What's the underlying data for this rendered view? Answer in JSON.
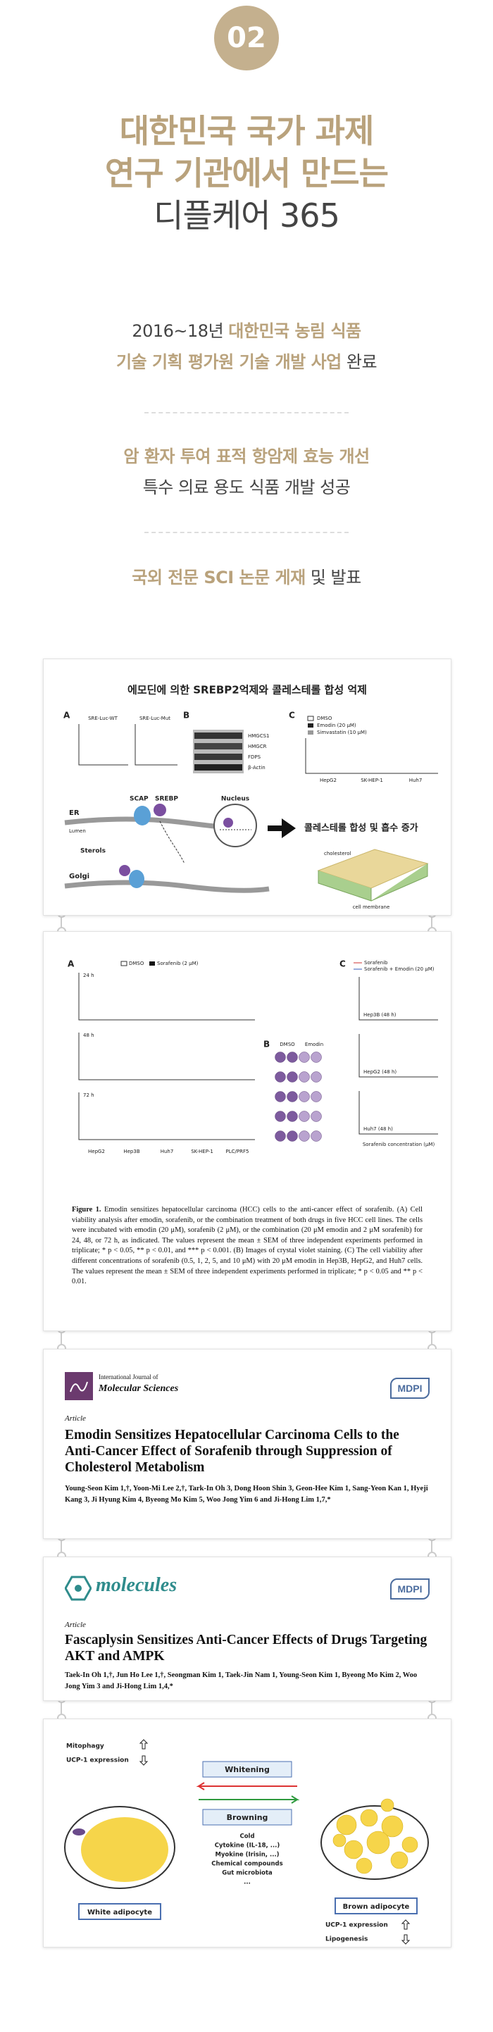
{
  "badge": "02",
  "headline": [
    {
      "text": "대한민국 국가 과제",
      "style": "accent"
    },
    {
      "text": "연구 기관에서 만드는",
      "style": "accent"
    },
    {
      "text": "디플케어 365",
      "style": "plain"
    }
  ],
  "achievements": [
    {
      "lines": [
        [
          {
            "text": "2016~18년 ",
            "style": "plain"
          },
          {
            "text": "대한민국 농림 식품",
            "style": "accent"
          }
        ],
        [
          {
            "text": "기술 기획 평가원 기술 개발 사업",
            "style": "accent"
          },
          {
            "text": " 완료",
            "style": "plain"
          }
        ]
      ]
    },
    {
      "lines": [
        [
          {
            "text": "암 환자 투여 표적 항암제 효능 개선",
            "style": "accent"
          }
        ],
        [
          {
            "text": "특수 의료 용도 식품 개발 성공",
            "style": "plain"
          }
        ]
      ]
    },
    {
      "lines": [
        [
          {
            "text": "국외 전문 SCI 논문 게재",
            "style": "accent"
          },
          {
            "text": " 및 발표",
            "style": "plain"
          }
        ]
      ]
    }
  ],
  "figure1": {
    "title": "에모딘에 의한 SREBP2억제와 콜레스테롤 합성 억제",
    "panels": [
      "A",
      "B",
      "C"
    ],
    "luc_labels": [
      "SRE-Luc-WT",
      "SRE-Luc-Mut"
    ],
    "blot_labels": [
      "HMGCS1",
      "HMGCR",
      "FDPS",
      "β-Actin"
    ],
    "legend": [
      "DMSO",
      "Emodin (20 μM)",
      "Simvastatin (10 μM)"
    ],
    "cell_lines": [
      "HepG2",
      "SK-HEP-1",
      "Huh7"
    ],
    "diagram": {
      "er": "ER",
      "lumen": "Lumen",
      "golgi": "Golgi",
      "sterols": "Sterols",
      "scap": "SCAP",
      "srebp": "SREBP",
      "nucleus": "Nucleus",
      "cholesterol": "cholesterol",
      "membrane": "cell membrane"
    },
    "result": "콜레스테롤 합성 및 흡수 증가"
  },
  "figure2": {
    "panels": [
      "A",
      "B",
      "C"
    ],
    "legend_a": [
      "DMSO",
      "Sorafenib (2 μM)"
    ],
    "times": [
      "24 h",
      "48 h",
      "72 h"
    ],
    "cell_lines": [
      "HepG2",
      "Hep3B",
      "Huh7",
      "SK-HEP-1",
      "PLC/PRF5"
    ],
    "legend_b": [
      "DMSO",
      "Emodin"
    ],
    "legend_c": [
      "Sorafenib",
      "Sorafenib + Emodin (20 μM)"
    ],
    "cells_c": [
      "Hep3B (48 h)",
      "HepG2 (48 h)",
      "Huh7 (48 h)"
    ],
    "x_title_c": "Sorafenib concentration (μM)",
    "caption_label": "Figure 1.",
    "caption": "Emodin sensitizes hepatocellular carcinoma (HCC) cells to the anti-cancer effect of sorafenib. (A) Cell viability analysis after emodin, sorafenib, or the combination treatment of both drugs in five HCC cell lines. The cells were incubated with emodin (20 μM), sorafenib (2 μM), or the combination (20 μM emodin and 2 μM sorafenib) for 24, 48, or 72 h, as indicated. The values represent the mean ± SEM of three independent experiments performed in triplicate; * p < 0.05, ** p < 0.01, and *** p < 0.001. (B) Images of crystal violet staining. (C) The cell viability after different concentrations of sorafenib (0.5, 1, 2, 5, and 10 μM) with 20 μM emodin in Hep3B, HepG2, and Huh7 cells. The values represent the mean ± SEM of three independent experiments performed in triplicate; * p < 0.05 and ** p < 0.01."
  },
  "paper1": {
    "journal_prefix": "International Journal of",
    "journal": "Molecular Sciences",
    "publisher": "MDPI",
    "article_type": "Article",
    "title": "Emodin Sensitizes Hepatocellular Carcinoma Cells to the Anti-Cancer Effect of Sorafenib through Suppression of Cholesterol Metabolism",
    "authors": "Young-Seon Kim 1,†, Yoon-Mi Lee 2,†, Tark-In Oh 3, Dong Hoon Shin 3, Geon-Hee Kim 1, Sang-Yeon Kan 1, Hyeji Kang 3, Ji Hyung Kim 4, Byeong Mo Kim 5, Woo Jong Yim 6 and Ji-Hong Lim 1,7,*"
  },
  "paper2": {
    "journal": "molecules",
    "publisher": "MDPI",
    "article_type": "Article",
    "title": "Fascaplysin Sensitizes Anti-Cancer Effects of Drugs Targeting AKT and AMPK",
    "authors": "Taek-In Oh 1,†, Jun Ho Lee 1,†, Seongman Kim 1, Taek-Jin Nam 1, Young-Seon Kim 1, Byeong Mo Kim 2, Woo Jong Yim 3 and Ji-Hong Lim 1,4,*"
  },
  "figure3": {
    "white_effects": [
      "Mitophagy",
      "UCP-1 expression"
    ],
    "white_label": "White adipocyte",
    "whitening": "Whitening",
    "browning": "Browning",
    "inducers": [
      "Cold",
      "Cytokine (IL-18, ...)",
      "Myokine (Irisin, ...)",
      "Chemical compounds",
      "Gut microbiota",
      "..."
    ],
    "brown_label": "Brown adipocyte",
    "brown_effects": [
      "UCP-1 expression",
      "Lipogenesis"
    ]
  }
}
